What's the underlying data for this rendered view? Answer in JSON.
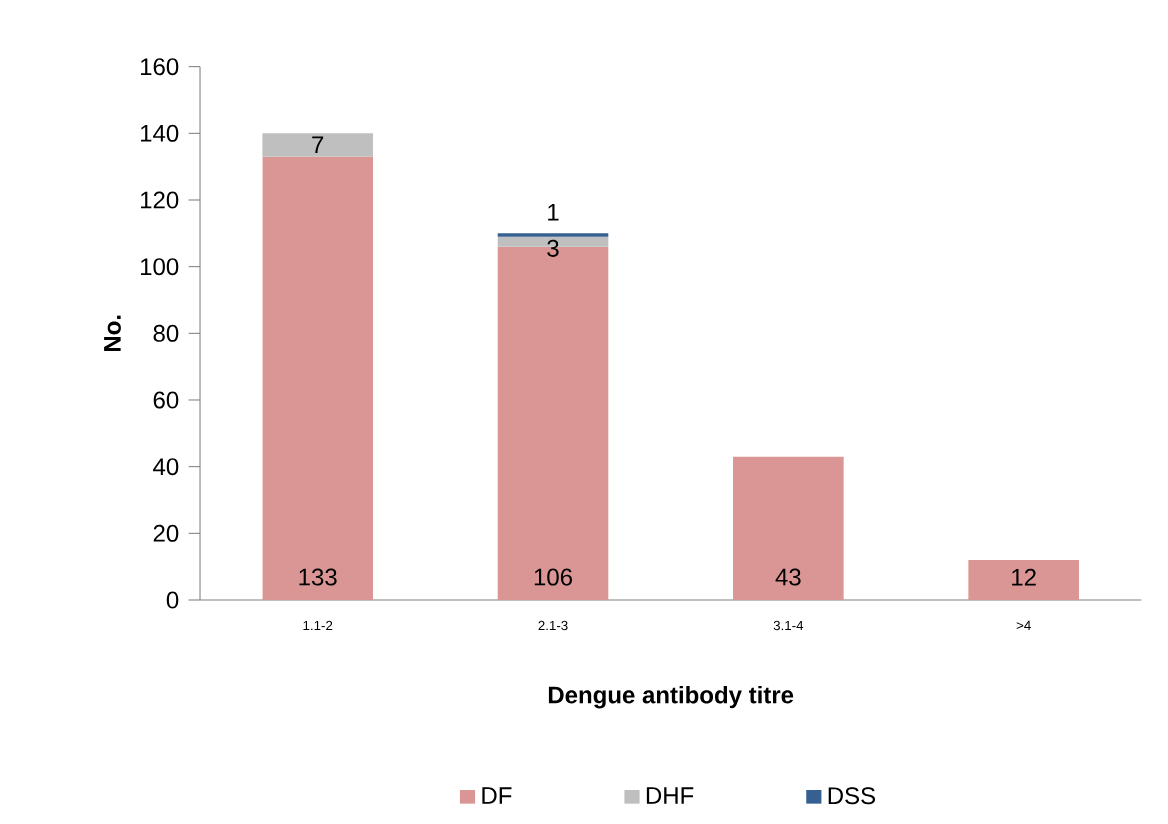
{
  "chart_data": {
    "type": "bar",
    "stacked": true,
    "xlabel": "Dengue antibody titre",
    "ylabel": "No.",
    "categories": [
      "1.1-2",
      "2.1-3",
      "3.1-4",
      ">4"
    ],
    "series": [
      {
        "name": "DF",
        "color": "#d99694",
        "values": [
          133,
          106,
          43,
          12
        ]
      },
      {
        "name": "DHF",
        "color": "#bfbfbf",
        "values": [
          7,
          3,
          null,
          null
        ]
      },
      {
        "name": "DSS",
        "color": "#376092",
        "values": [
          null,
          1,
          null,
          null
        ]
      }
    ],
    "ylim": [
      0,
      160
    ],
    "yticks": [
      0,
      20,
      40,
      60,
      80,
      100,
      120,
      140,
      160
    ],
    "data_labels": true,
    "legend": "bottom",
    "grid": false
  }
}
